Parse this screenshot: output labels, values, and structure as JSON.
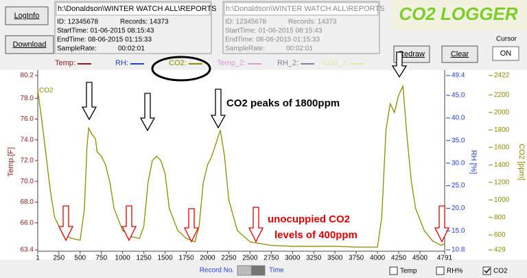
{
  "header": {
    "title": "CO2 LOGGER",
    "cursor_label": "Cursor",
    "cursor_button": "ON"
  },
  "buttons": [
    "LogInfo",
    "Download",
    "Redraw",
    "Clear"
  ],
  "info_boxes": [
    {
      "path": "h:\\Donaldson\\WINTER WATCH ALL\\REPORTS",
      "id": "ID: 12345678",
      "records": "Records: 14373",
      "start": "StartTime: 01-06-2015 08:15:43",
      "end": "EndTime:   08-06-2015 01:15:33",
      "rate_label": "SampleRate:",
      "rate": "00:02:01"
    },
    {
      "path": "h:\\Donaldson\\WINTER WATCH ALL\\REPORTS",
      "id": "ID: 12345678",
      "records": "Records: 14373",
      "start": "StartTime: 01-06-2015 08:15:43",
      "end": "EndTime:   08-06-2015 01:15:33",
      "rate_label": "SampleRate:",
      "rate": "00:02:01"
    }
  ],
  "legend": [
    {
      "name": "Temp:",
      "color": "#8b1a1a"
    },
    {
      "name": "RH:",
      "color": "#1f3fe0"
    },
    {
      "name": "CO2:",
      "color": "#8b8b00"
    },
    {
      "name": "Temp_2:",
      "color": "#d79ad7"
    },
    {
      "name": "RH_2:",
      "color": "#8080a0"
    },
    {
      "name": "CO2_2:",
      "color": "#e6e6a0"
    }
  ],
  "footer": {
    "record_label": "Record No.",
    "time_label": "Time",
    "checkboxes": [
      {
        "label": "Temp",
        "checked": false
      },
      {
        "label": "RH%",
        "checked": false
      },
      {
        "label": "CO2",
        "checked": true
      }
    ]
  },
  "chart_data": {
    "type": "line",
    "plot_label": "CO2",
    "annotations": [
      "CO2 peaks of 1800ppm",
      "unocuppied CO2",
      "levels of 400ppm"
    ],
    "ylabel": "Temp.[F]",
    "rh_label": "RH [%]",
    "y2label": "CO2 [ppm]",
    "x": [
      1,
      50,
      100,
      150,
      200,
      300,
      400,
      500,
      550,
      580,
      600,
      640,
      680,
      700,
      750,
      800,
      850,
      900,
      1000,
      1100,
      1200,
      1250,
      1300,
      1350,
      1400,
      1450,
      1500,
      1550,
      1650,
      1750,
      1850,
      1900,
      1950,
      2000,
      2050,
      2100,
      2150,
      2200,
      2250,
      2350,
      2500,
      2750,
      3000,
      3250,
      3500,
      3750,
      4000,
      4050,
      4100,
      4150,
      4200,
      4250,
      4300,
      4350,
      4400,
      4450,
      4550,
      4650,
      4750,
      4791
    ],
    "series": [
      {
        "name": "CO2",
        "color": "#8b8b00",
        "axis": "y2",
        "values": [
          2250,
          1900,
          1500,
          1100,
          800,
          600,
          560,
          540,
          900,
          1600,
          1820,
          1750,
          1700,
          1550,
          1500,
          1400,
          1200,
          900,
          650,
          580,
          560,
          700,
          1200,
          1450,
          1500,
          1450,
          1300,
          900,
          650,
          560,
          520,
          700,
          1200,
          1400,
          1500,
          1650,
          1800,
          1500,
          1000,
          650,
          520,
          480,
          470,
          470,
          470,
          460,
          460,
          800,
          1800,
          2100,
          2000,
          2200,
          2300,
          1700,
          1200,
          900,
          650,
          530,
          480,
          500
        ]
      }
    ],
    "xlim": [
      1,
      4791
    ],
    "xticks": [
      1,
      250,
      500,
      750,
      1000,
      1250,
      1500,
      1750,
      2000,
      2250,
      2500,
      2750,
      3000,
      3250,
      3500,
      3750,
      4000,
      4250,
      4500,
      4791
    ],
    "ylim": [
      63.4,
      80.2
    ],
    "yticks": [
      63.4,
      {
        "value": 66,
        "label": "66.0"
      },
      {
        "value": 68,
        "label": "68.0"
      },
      {
        "value": 70,
        "label": "70.0"
      },
      {
        "value": 72,
        "label": "72.0"
      },
      {
        "value": 74,
        "label": "74.0"
      },
      {
        "value": 76,
        "label": "76.0"
      },
      {
        "value": 78,
        "label": "78.0"
      },
      80.2
    ],
    "rh_lim": [
      10.8,
      49.4
    ],
    "rh_ticks": [
      10.8,
      {
        "value": 15,
        "label": "15.0"
      },
      {
        "value": 20,
        "label": "20.0"
      },
      {
        "value": 25,
        "label": "25.0"
      },
      {
        "value": 30,
        "label": "30.0"
      },
      {
        "value": 35,
        "label": "35.0"
      },
      {
        "value": 40,
        "label": "40.0"
      },
      {
        "value": 45,
        "label": "45.0"
      },
      49.4
    ],
    "y2lim": [
      429,
      2422
    ],
    "y2ticks": [
      429,
      600,
      800,
      1000,
      1200,
      1400,
      1600,
      1800,
      2000,
      2200,
      2422
    ]
  }
}
